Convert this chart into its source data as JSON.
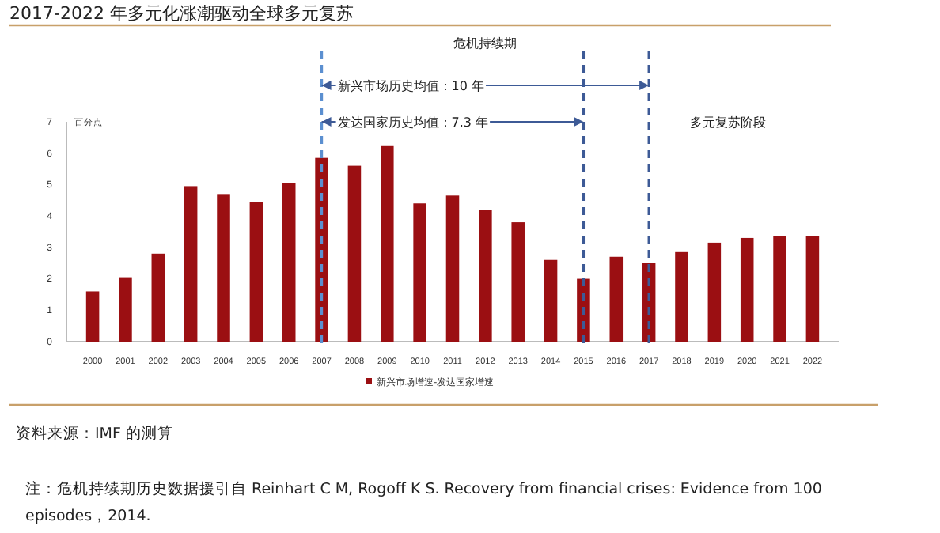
{
  "chart_data": {
    "type": "bar",
    "title": "2017-2022 年多元化涨潮驱动全球多元复苏",
    "ylabel": "百分点",
    "categories": [
      "2000",
      "2001",
      "2002",
      "2003",
      "2004",
      "2005",
      "2006",
      "2007",
      "2008",
      "2009",
      "2010",
      "2011",
      "2012",
      "2013",
      "2014",
      "2015",
      "2016",
      "2017",
      "2018",
      "2019",
      "2020",
      "2021",
      "2022"
    ],
    "series": [
      {
        "name": "新兴市场增速-发达国家增速",
        "color": "#9b0f12",
        "values": [
          1.6,
          2.05,
          2.8,
          4.95,
          4.7,
          4.45,
          5.05,
          5.85,
          5.6,
          6.25,
          4.4,
          4.65,
          4.2,
          3.8,
          2.6,
          2.0,
          2.7,
          2.5,
          2.85,
          3.15,
          3.3,
          3.35,
          3.35
        ]
      }
    ],
    "ylim": [
      0,
      7
    ],
    "yticks": [
      0,
      1,
      2,
      3,
      4,
      5,
      6,
      7
    ],
    "grid": false,
    "legend": "bottom",
    "ref_lines": [
      {
        "axis": "x",
        "value": "2007",
        "label": null,
        "color": "#5b8fd0",
        "line_style": "dashed"
      },
      {
        "axis": "x",
        "value": "2015",
        "label": null,
        "color": "#3d5a96",
        "line_style": "dashed"
      },
      {
        "axis": "x",
        "value": "2017",
        "label": null,
        "color": "#3d5a96",
        "line_style": "dashed"
      }
    ],
    "annotations": [
      "危机持续期",
      "新兴市场历史均值：10 年",
      "发达国家历史均值：7.3 年",
      "多元复苏阶段",
      "资料来源：IMF 的测算",
      "注：危机持续期历史数据援引自 Reinhart C M, Rogoff K S. Recovery from financial crises: Evidence from 100 episodes，2014."
    ]
  }
}
